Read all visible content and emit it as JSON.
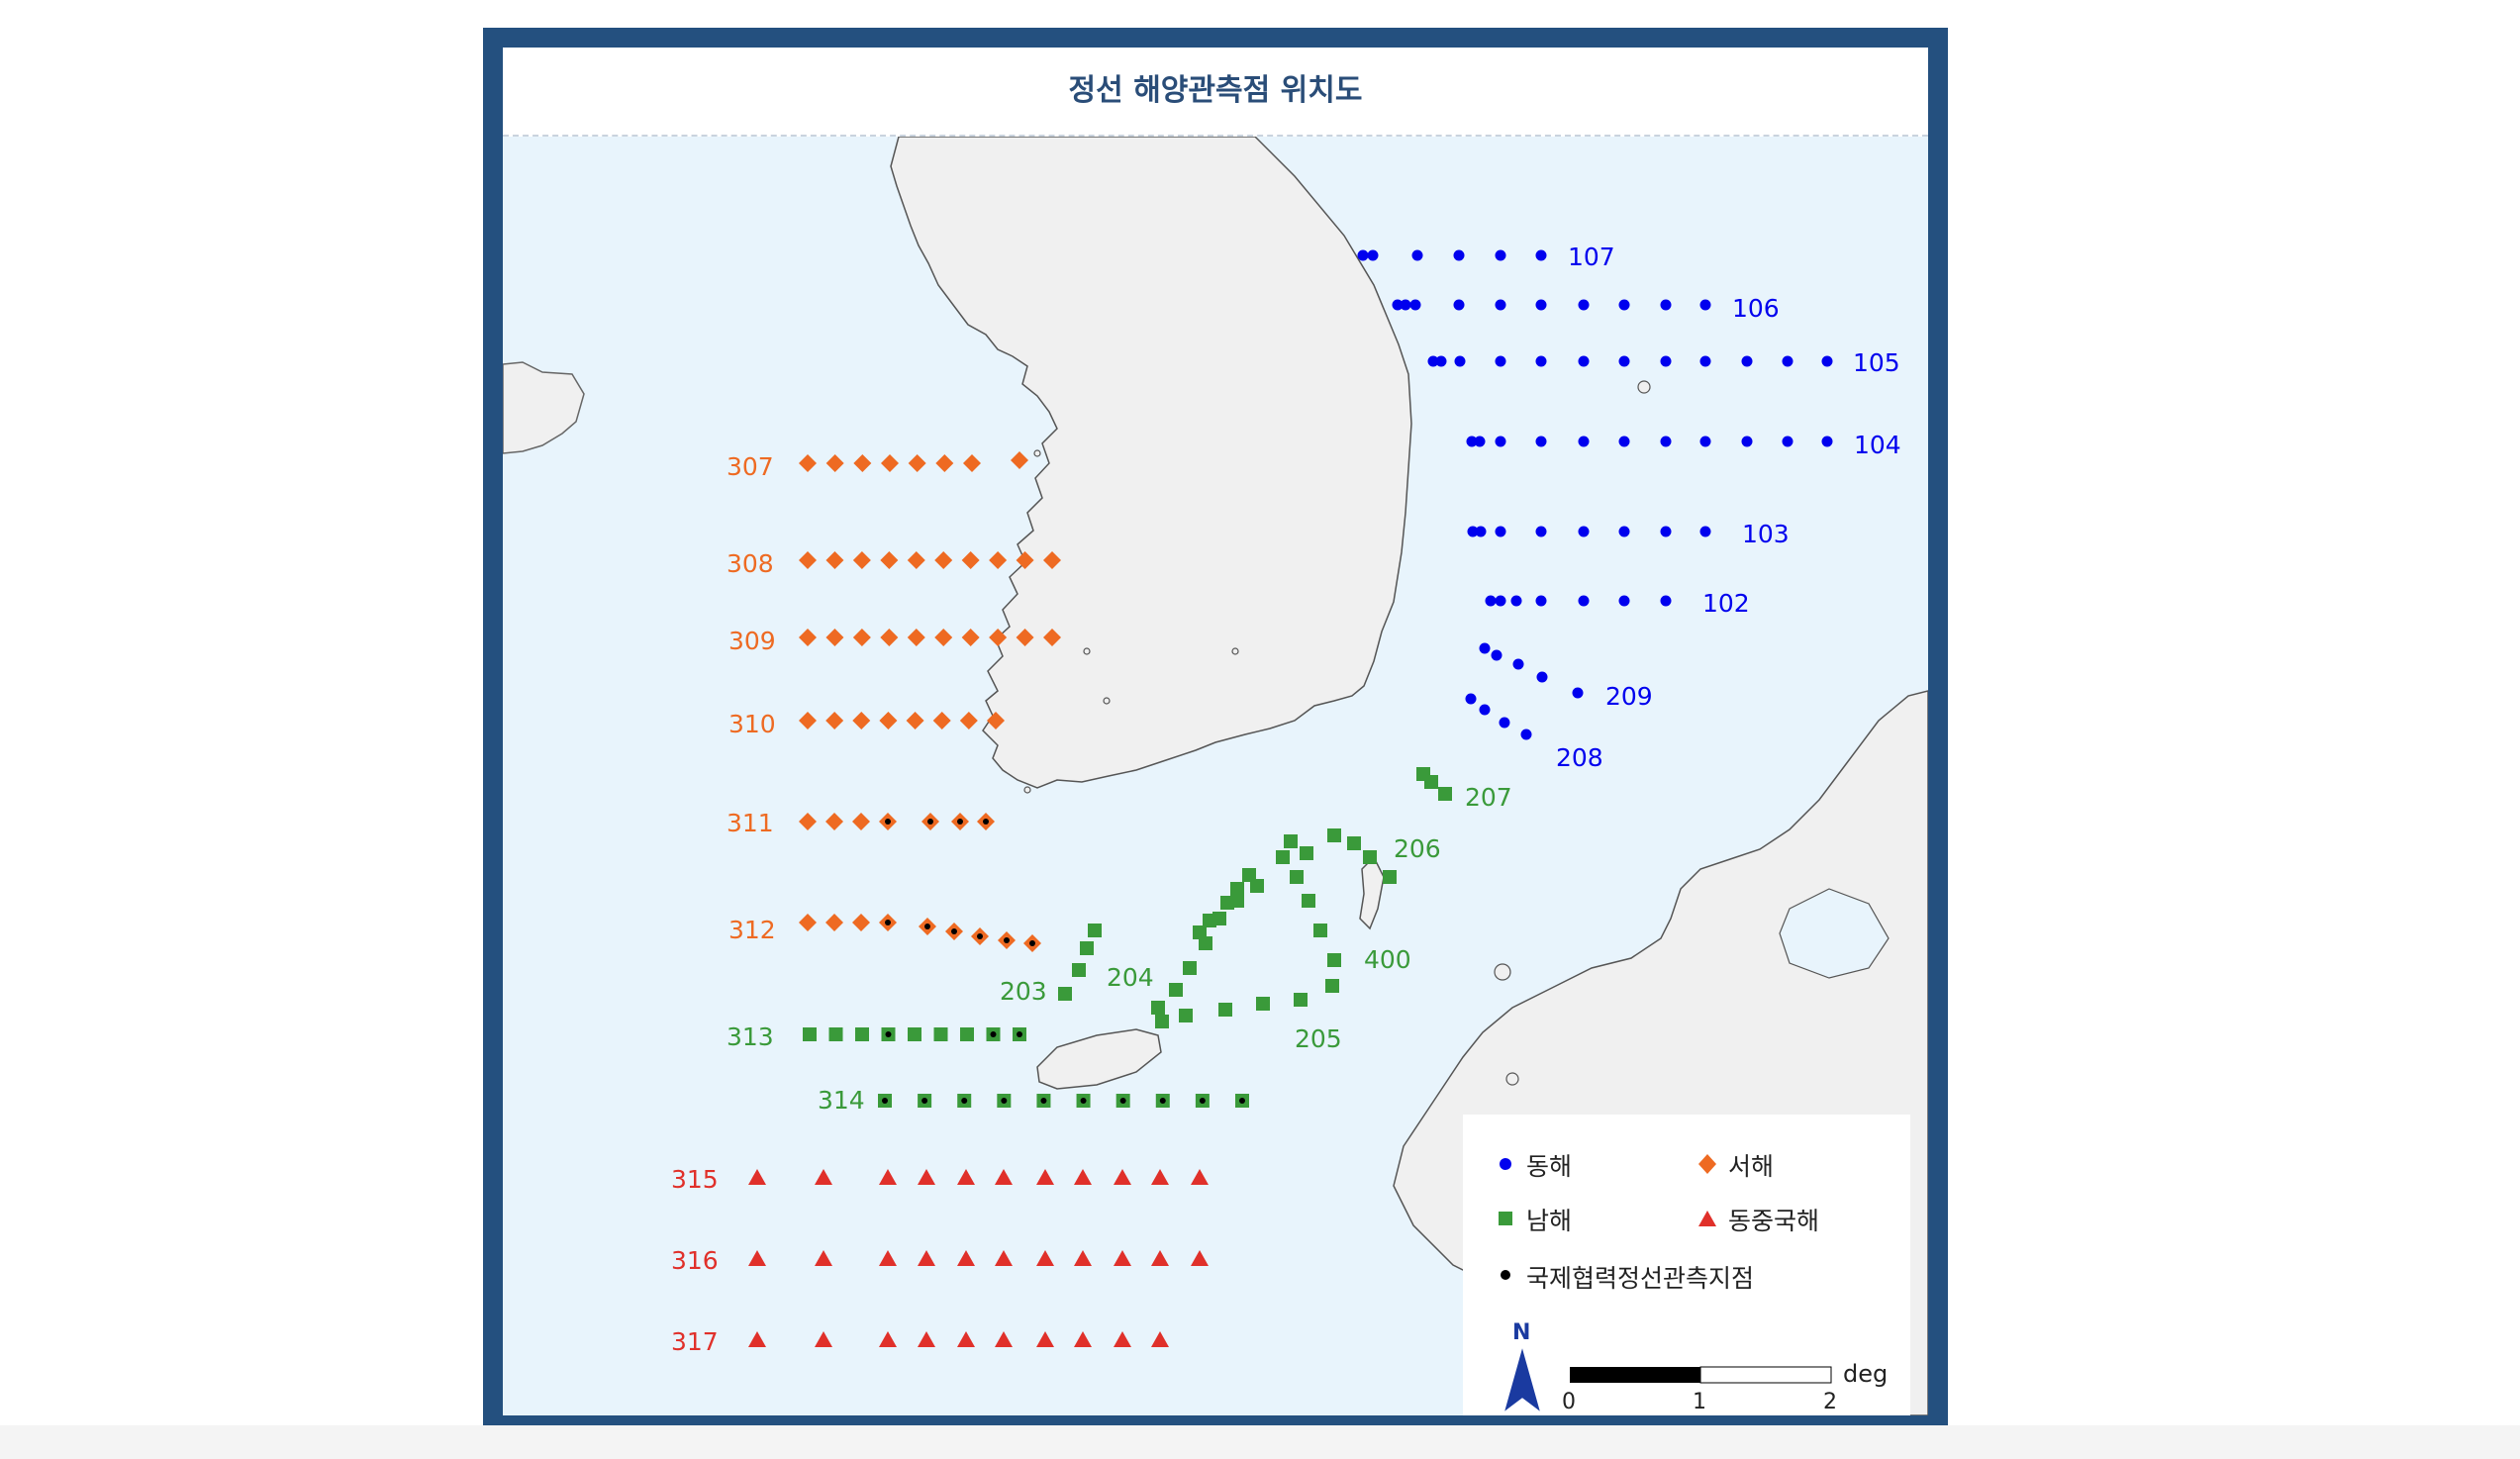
{
  "title": "정선 해양관측점 위치도",
  "colors": {
    "east": "#0000ee",
    "west": "#ee6a22",
    "south": "#3a9a3a",
    "ecs": "#e0302a",
    "intl": "#000000",
    "land": "#f0f0f0",
    "sea": "#e8f4fc",
    "frame": "#24507f"
  },
  "lines": {
    "east": [
      {
        "id": "107",
        "label": "107"
      },
      {
        "id": "106",
        "label": "106"
      },
      {
        "id": "105",
        "label": "105"
      },
      {
        "id": "104",
        "label": "104"
      },
      {
        "id": "103",
        "label": "103"
      },
      {
        "id": "102",
        "label": "102"
      },
      {
        "id": "209",
        "label": "209"
      },
      {
        "id": "208",
        "label": "208"
      }
    ],
    "west": [
      {
        "id": "307",
        "label": "307"
      },
      {
        "id": "308",
        "label": "308"
      },
      {
        "id": "309",
        "label": "309"
      },
      {
        "id": "310",
        "label": "310"
      },
      {
        "id": "311",
        "label": "311"
      },
      {
        "id": "312",
        "label": "312"
      }
    ],
    "south": [
      {
        "id": "207",
        "label": "207"
      },
      {
        "id": "206",
        "label": "206"
      },
      {
        "id": "400",
        "label": "400"
      },
      {
        "id": "205",
        "label": "205"
      },
      {
        "id": "204",
        "label": "204"
      },
      {
        "id": "203",
        "label": "203"
      },
      {
        "id": "313",
        "label": "313"
      },
      {
        "id": "314",
        "label": "314"
      }
    ],
    "ecs": [
      {
        "id": "315",
        "label": "315"
      },
      {
        "id": "316",
        "label": "316"
      },
      {
        "id": "317",
        "label": "317"
      }
    ]
  },
  "legend": {
    "east": "동해",
    "west": "서해",
    "south": "남해",
    "ecs": "동중국해",
    "intl": "국제협력정선관측지점",
    "north": "N",
    "scale_unit": "deg",
    "scale_ticks": [
      "0",
      "1",
      "2"
    ]
  }
}
